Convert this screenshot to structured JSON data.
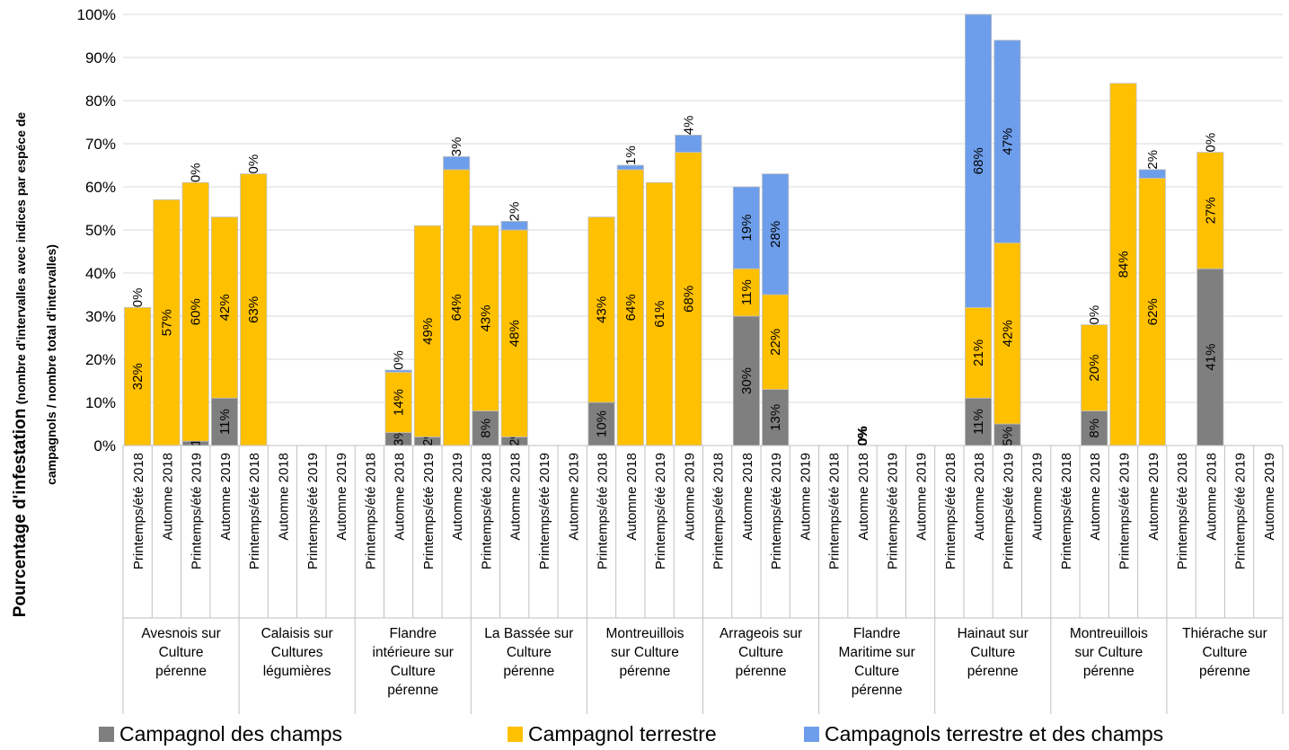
{
  "chart_data": {
    "type": "bar",
    "stacked": true,
    "ylabel_main": "Pourcentage d'infestation",
    "ylabel_sub_1": "(nombre d'intervalles avec indices par espéce de",
    "ylabel_sub_2": "campagnols / nombre total d'intervalles)",
    "ylim": [
      0,
      100
    ],
    "yticks": [
      "0%",
      "10%",
      "20%",
      "30%",
      "40%",
      "50%",
      "60%",
      "70%",
      "80%",
      "90%",
      "100%"
    ],
    "grid": true,
    "legend_position": "bottom",
    "series_names": [
      "Campagnol des champs",
      "Campagnol terrestre",
      "Campagnols terrestre et des champs"
    ],
    "colors": [
      "#7f7f7f",
      "#ffc000",
      "#6d9eeb"
    ],
    "periods": [
      "Printemps/été 2018",
      "Automne 2018",
      "Printemps/été 2019",
      "Automne 2019"
    ],
    "groups": [
      {
        "label": [
          "Avesnois sur",
          "Culture",
          "pérenne"
        ],
        "bars": [
          {
            "v": [
              0,
              32,
              0
            ],
            "l": [
              "0%",
              "32%",
              "0%"
            ]
          },
          {
            "v": [
              0,
              57,
              0
            ],
            "l": [
              "0%",
              "57%",
              ""
            ]
          },
          {
            "v": [
              1,
              60,
              0
            ],
            "l": [
              "1%",
              "60%",
              "0%"
            ]
          },
          {
            "v": [
              11,
              42,
              0
            ],
            "l": [
              "11%",
              "42%",
              ""
            ]
          }
        ]
      },
      {
        "label": [
          "Calaisis sur",
          "Cultures",
          "légumières"
        ],
        "bars": [
          {
            "v": [
              0,
              63,
              0
            ],
            "l": [
              "0%",
              "63%",
              "0%"
            ]
          },
          null,
          null,
          null
        ]
      },
      {
        "label": [
          "Flandre",
          "intérieure sur",
          "Culture",
          "pérenne"
        ],
        "bars": [
          null,
          {
            "v": [
              3,
              14,
              0.5
            ],
            "l": [
              "3%",
              "14%",
              "0%"
            ]
          },
          {
            "v": [
              2,
              49,
              0
            ],
            "l": [
              "2%",
              "49%",
              ""
            ]
          },
          {
            "v": [
              0,
              64,
              3
            ],
            "l": [
              "",
              "64%",
              "3%"
            ]
          }
        ]
      },
      {
        "label": [
          "La Bassée sur",
          "Culture",
          "pérenne"
        ],
        "bars": [
          {
            "v": [
              8,
              43,
              0
            ],
            "l": [
              "8%",
              "43%",
              ""
            ]
          },
          {
            "v": [
              2,
              48,
              2
            ],
            "l": [
              "2%",
              "48%",
              "2%"
            ]
          },
          null,
          null
        ]
      },
      {
        "label": [
          "Montreuillois",
          "sur Culture",
          "pérenne"
        ],
        "bars": [
          {
            "v": [
              10,
              43,
              0
            ],
            "l": [
              "10%",
              "43%",
              ""
            ]
          },
          {
            "v": [
              0,
              64,
              1
            ],
            "l": [
              "0%",
              "64%",
              "1%"
            ]
          },
          {
            "v": [
              0,
              61,
              0
            ],
            "l": [
              "0%",
              "61%",
              ""
            ]
          },
          {
            "v": [
              0,
              68,
              4
            ],
            "l": [
              "",
              "68%",
              "4%"
            ]
          }
        ]
      },
      {
        "label": [
          "Arrageois sur",
          "Culture",
          "pérenne"
        ],
        "bars": [
          null,
          {
            "v": [
              30,
              11,
              19
            ],
            "l": [
              "30%",
              "11%",
              "19%"
            ]
          },
          {
            "v": [
              13,
              22,
              28
            ],
            "l": [
              "13%",
              "22%",
              "28%"
            ]
          },
          null
        ]
      },
      {
        "label": [
          "Flandre",
          "Maritime sur",
          "Culture",
          "pérenne"
        ],
        "bars": [
          null,
          {
            "v": [
              0,
              0,
              0
            ],
            "l": [
              "0%",
              "0%",
              "0%"
            ]
          },
          null,
          null
        ]
      },
      {
        "label": [
          "Hainaut sur",
          "Culture",
          "pérenne"
        ],
        "bars": [
          null,
          {
            "v": [
              11,
              21,
              68
            ],
            "l": [
              "11%",
              "21%",
              "68%"
            ]
          },
          {
            "v": [
              5,
              42,
              47
            ],
            "l": [
              "5%",
              "42%",
              "47%"
            ]
          },
          null
        ]
      },
      {
        "label": [
          "Montreuillois",
          "sur Culture",
          "pérenne"
        ],
        "bars": [
          null,
          {
            "v": [
              8,
              20,
              0
            ],
            "l": [
              "8%",
              "20%",
              "0%"
            ]
          },
          {
            "v": [
              0,
              84,
              0
            ],
            "l": [
              "0%",
              "84%",
              ""
            ]
          },
          {
            "v": [
              0,
              62,
              2
            ],
            "l": [
              "",
              "62%",
              "2%"
            ]
          }
        ]
      },
      {
        "label": [
          "Thiérache sur",
          "Culture",
          "pérenne"
        ],
        "bars": [
          null,
          {
            "v": [
              41,
              27,
              0
            ],
            "l": [
              "41%",
              "27%",
              "0%"
            ]
          },
          null,
          null
        ]
      }
    ]
  }
}
